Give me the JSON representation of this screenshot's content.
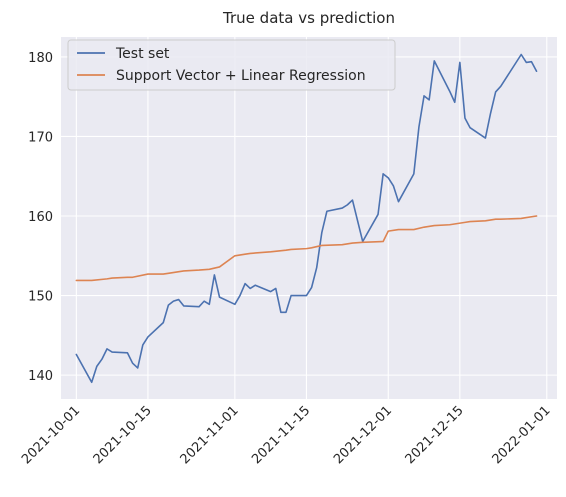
{
  "chart_data": {
    "type": "line",
    "title": "True data vs prediction",
    "xlabel": "",
    "ylabel": "",
    "x_axis_type": "date",
    "xlim": [
      "2021-09-28",
      "2022-01-03"
    ],
    "ylim": [
      137,
      182.5
    ],
    "x_ticks": [
      "2021-10-01",
      "2021-10-15",
      "2021-11-01",
      "2021-11-15",
      "2021-12-01",
      "2021-12-15",
      "2022-01-01"
    ],
    "y_ticks": [
      140,
      150,
      160,
      170,
      180
    ],
    "grid": true,
    "legend_position": "upper-left",
    "series": [
      {
        "name": "Test set",
        "color": "#4c72b0",
        "points": [
          [
            "2021-10-01",
            142.6
          ],
          [
            "2021-10-04",
            139.1
          ],
          [
            "2021-10-05",
            141.1
          ],
          [
            "2021-10-06",
            142.0
          ],
          [
            "2021-10-07",
            143.3
          ],
          [
            "2021-10-08",
            142.9
          ],
          [
            "2021-10-11",
            142.8
          ],
          [
            "2021-10-12",
            141.5
          ],
          [
            "2021-10-13",
            140.9
          ],
          [
            "2021-10-14",
            143.8
          ],
          [
            "2021-10-15",
            144.8
          ],
          [
            "2021-10-18",
            146.6
          ],
          [
            "2021-10-19",
            148.8
          ],
          [
            "2021-10-20",
            149.3
          ],
          [
            "2021-10-21",
            149.5
          ],
          [
            "2021-10-22",
            148.7
          ],
          [
            "2021-10-25",
            148.6
          ],
          [
            "2021-10-26",
            149.3
          ],
          [
            "2021-10-27",
            148.9
          ],
          [
            "2021-10-28",
            152.6
          ],
          [
            "2021-10-29",
            149.8
          ],
          [
            "2021-11-01",
            148.9
          ],
          [
            "2021-11-02",
            150.0
          ],
          [
            "2021-11-03",
            151.5
          ],
          [
            "2021-11-04",
            150.9
          ],
          [
            "2021-11-05",
            151.3
          ],
          [
            "2021-11-08",
            150.5
          ],
          [
            "2021-11-09",
            150.9
          ],
          [
            "2021-11-10",
            147.9
          ],
          [
            "2021-11-11",
            147.9
          ],
          [
            "2021-11-12",
            150.0
          ],
          [
            "2021-11-15",
            150.0
          ],
          [
            "2021-11-16",
            151.0
          ],
          [
            "2021-11-17",
            153.5
          ],
          [
            "2021-11-18",
            157.9
          ],
          [
            "2021-11-19",
            160.6
          ],
          [
            "2021-11-22",
            161.0
          ],
          [
            "2021-11-23",
            161.4
          ],
          [
            "2021-11-24",
            162.0
          ],
          [
            "2021-11-26",
            156.8
          ],
          [
            "2021-11-29",
            160.2
          ],
          [
            "2021-11-30",
            165.3
          ],
          [
            "2021-12-01",
            164.8
          ],
          [
            "2021-12-02",
            163.8
          ],
          [
            "2021-12-03",
            161.8
          ],
          [
            "2021-12-06",
            165.3
          ],
          [
            "2021-12-07",
            171.2
          ],
          [
            "2021-12-08",
            175.1
          ],
          [
            "2021-12-09",
            174.6
          ],
          [
            "2021-12-10",
            179.5
          ],
          [
            "2021-12-13",
            175.7
          ],
          [
            "2021-12-14",
            174.3
          ],
          [
            "2021-12-15",
            179.3
          ],
          [
            "2021-12-16",
            172.3
          ],
          [
            "2021-12-17",
            171.1
          ],
          [
            "2021-12-20",
            169.8
          ],
          [
            "2021-12-21",
            172.9
          ],
          [
            "2021-12-22",
            175.6
          ],
          [
            "2021-12-23",
            176.3
          ],
          [
            "2021-12-27",
            180.3
          ],
          [
            "2021-12-28",
            179.3
          ],
          [
            "2021-12-29",
            179.4
          ],
          [
            "2021-12-30",
            178.2
          ]
        ]
      },
      {
        "name": "Support Vector + Linear Regression",
        "color": "#dd8452",
        "points": [
          [
            "2021-10-01",
            151.9
          ],
          [
            "2021-10-04",
            151.9
          ],
          [
            "2021-10-07",
            152.1
          ],
          [
            "2021-10-08",
            152.2
          ],
          [
            "2021-10-11",
            152.3
          ],
          [
            "2021-10-12",
            152.3
          ],
          [
            "2021-10-15",
            152.7
          ],
          [
            "2021-10-18",
            152.7
          ],
          [
            "2021-10-19",
            152.8
          ],
          [
            "2021-10-22",
            153.1
          ],
          [
            "2021-10-25",
            153.2
          ],
          [
            "2021-10-27",
            153.3
          ],
          [
            "2021-10-29",
            153.6
          ],
          [
            "2021-11-01",
            155.0
          ],
          [
            "2021-11-03",
            155.2
          ],
          [
            "2021-11-04",
            155.3
          ],
          [
            "2021-11-08",
            155.5
          ],
          [
            "2021-11-11",
            155.7
          ],
          [
            "2021-11-12",
            155.8
          ],
          [
            "2021-11-15",
            155.9
          ],
          [
            "2021-11-16",
            156.0
          ],
          [
            "2021-11-18",
            156.3
          ],
          [
            "2021-11-22",
            156.4
          ],
          [
            "2021-11-24",
            156.6
          ],
          [
            "2021-11-26",
            156.7
          ],
          [
            "2021-11-30",
            156.8
          ],
          [
            "2021-12-01",
            158.1
          ],
          [
            "2021-12-03",
            158.3
          ],
          [
            "2021-12-06",
            158.3
          ],
          [
            "2021-12-08",
            158.6
          ],
          [
            "2021-12-10",
            158.8
          ],
          [
            "2021-12-13",
            158.9
          ],
          [
            "2021-12-16",
            159.2
          ],
          [
            "2021-12-17",
            159.3
          ],
          [
            "2021-12-20",
            159.4
          ],
          [
            "2021-12-22",
            159.6
          ],
          [
            "2021-12-23",
            159.6
          ],
          [
            "2021-12-27",
            159.7
          ],
          [
            "2021-12-28",
            159.8
          ],
          [
            "2021-12-30",
            160.0
          ]
        ]
      }
    ]
  }
}
